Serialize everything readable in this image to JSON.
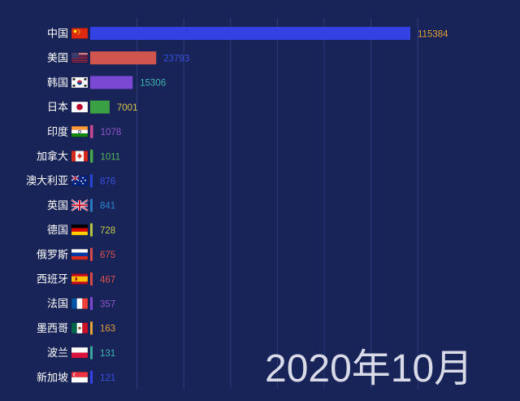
{
  "chart_data": {
    "type": "bar",
    "orientation": "horizontal",
    "period": "2020年10月",
    "xlim": [
      0,
      115384
    ],
    "grid": true,
    "categories": [
      "中国",
      "美国",
      "韩国",
      "日本",
      "印度",
      "加拿大",
      "澳大利亚",
      "英国",
      "德国",
      "俄罗斯",
      "西班牙",
      "法国",
      "墨西哥",
      "波兰",
      "新加坡"
    ],
    "values": [
      115384,
      23793,
      15306,
      7001,
      1078,
      1011,
      876,
      841,
      728,
      675,
      467,
      357,
      163,
      131,
      121
    ],
    "flag_icons": [
      "china-flag-icon",
      "usa-flag-icon",
      "korea-flag-icon",
      "japan-flag-icon",
      "india-flag-icon",
      "canada-flag-icon",
      "australia-flag-icon",
      "uk-flag-icon",
      "germany-flag-icon",
      "russia-flag-icon",
      "spain-flag-icon",
      "france-flag-icon",
      "mexico-flag-icon",
      "poland-flag-icon",
      "singapore-flag-icon"
    ],
    "bar_colors": [
      "#3441e3",
      "#d0554e",
      "#7a48d2",
      "#3aa043",
      "#c2478e",
      "#46a64a",
      "#2d44d8",
      "#2877c0",
      "#b4c341",
      "#d44a4a",
      "#d44a4a",
      "#7a48d2",
      "#e2a23a",
      "#3aa39e",
      "#3441e3"
    ],
    "label_colors": [
      "#e0a03c",
      "#3b4fe0",
      "#3fb5b0",
      "#d8c54a",
      "#8e58c8",
      "#56b556",
      "#3b4fe0",
      "#2e86d0",
      "#c2cf4e",
      "#d9534f",
      "#d9534f",
      "#8e58c8",
      "#e0a03c",
      "#3fb5b0",
      "#3b4fe0"
    ]
  }
}
